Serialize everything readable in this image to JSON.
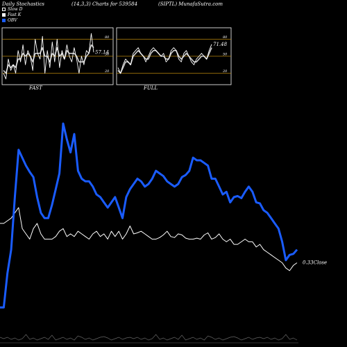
{
  "header": {
    "left": "Daily Stochastics",
    "params": "(14,3,3) Charts for 539584",
    "site": "(SIPTL) MunafaSutra.com"
  },
  "legend": [
    {
      "label": "Slow D",
      "color": "#ffffff",
      "style": "outline"
    },
    {
      "label": "Fast K",
      "color": "#ffffff",
      "style": "filled"
    },
    {
      "label": "OBV",
      "color": "#1a5cff",
      "style": "filled"
    }
  ],
  "colors": {
    "blue": "#1a5cff",
    "white": "#ffffff",
    "gold": "#b8860b",
    "background": "#000000"
  },
  "chart_data": [
    {
      "type": "line",
      "title": "FAST",
      "levels": [
        80,
        50,
        20
      ],
      "ylim": [
        0,
        100
      ],
      "last_value_label": "57.14",
      "series": [
        {
          "values": [
            20,
            10,
            45,
            25,
            35,
            20,
            60,
            40,
            70,
            35,
            60,
            50,
            25,
            80,
            55,
            45,
            85,
            20,
            60,
            30,
            75,
            40,
            80,
            30,
            60,
            45,
            70,
            50,
            40,
            65,
            45,
            20,
            50,
            35,
            60,
            55,
            90,
            57
          ]
        },
        {
          "values": [
            25,
            20,
            35,
            30,
            35,
            30,
            45,
            45,
            55,
            50,
            55,
            50,
            40,
            55,
            55,
            55,
            65,
            50,
            50,
            40,
            55,
            50,
            65,
            50,
            55,
            45,
            60,
            55,
            55,
            55,
            50,
            40,
            40,
            40,
            50,
            55,
            70,
            65
          ]
        }
      ]
    },
    {
      "type": "line",
      "title": "FULL",
      "levels": [
        80,
        50,
        20
      ],
      "ylim": [
        0,
        100
      ],
      "last_value_label": "71.48",
      "series": [
        {
          "values": [
            30,
            20,
            35,
            45,
            40,
            35,
            55,
            60,
            65,
            55,
            50,
            40,
            50,
            60,
            65,
            60,
            55,
            50,
            55,
            40,
            45,
            60,
            65,
            60,
            45,
            40,
            55,
            60,
            50,
            40,
            35,
            45,
            50,
            55,
            50,
            45,
            60,
            71
          ]
        },
        {
          "values": [
            25,
            20,
            30,
            40,
            40,
            35,
            50,
            55,
            60,
            55,
            50,
            45,
            45,
            55,
            60,
            60,
            55,
            50,
            50,
            45,
            45,
            55,
            60,
            60,
            50,
            45,
            50,
            55,
            50,
            45,
            40,
            40,
            45,
            50,
            50,
            45,
            55,
            65
          ]
        }
      ]
    },
    {
      "type": "line",
      "title": "",
      "last_value_label": "0.33",
      "label_suffix": "Close",
      "series": [
        {
          "name": "OBV",
          "color": "#1a5cff",
          "values": [
            -30,
            -30,
            35,
            80,
            180,
            270,
            255,
            240,
            228,
            218,
            180,
            150,
            140,
            140,
            165,
            195,
            225,
            320,
            290,
            265,
            300,
            230,
            215,
            210,
            210,
            200,
            185,
            180,
            170,
            160,
            170,
            180,
            160,
            140,
            180,
            195,
            205,
            215,
            210,
            200,
            205,
            215,
            230,
            225,
            220,
            210,
            205,
            200,
            205,
            218,
            222,
            230,
            255,
            250,
            250,
            245,
            240,
            215,
            215,
            200,
            185,
            190,
            170,
            180,
            182,
            178,
            190,
            200,
            190,
            170,
            168,
            155,
            150,
            140,
            130,
            120,
            95,
            60,
            70,
            72,
            80
          ]
        },
        {
          "name": "Close",
          "color": "#ffffff",
          "values": [
            130,
            130,
            135,
            140,
            150,
            160,
            120,
            110,
            100,
            120,
            130,
            110,
            100,
            100,
            100,
            105,
            115,
            120,
            105,
            110,
            105,
            115,
            110,
            105,
            100,
            110,
            115,
            105,
            110,
            100,
            115,
            105,
            115,
            100,
            110,
            125,
            110,
            112,
            115,
            110,
            105,
            100,
            100,
            103,
            108,
            115,
            105,
            103,
            110,
            108,
            102,
            100,
            100,
            102,
            100,
            108,
            112,
            100,
            103,
            110,
            100,
            95,
            100,
            90,
            90,
            95,
            100,
            95,
            95,
            85,
            90,
            80,
            75,
            70,
            65,
            60,
            55,
            45,
            40,
            50,
            55
          ]
        }
      ]
    }
  ]
}
